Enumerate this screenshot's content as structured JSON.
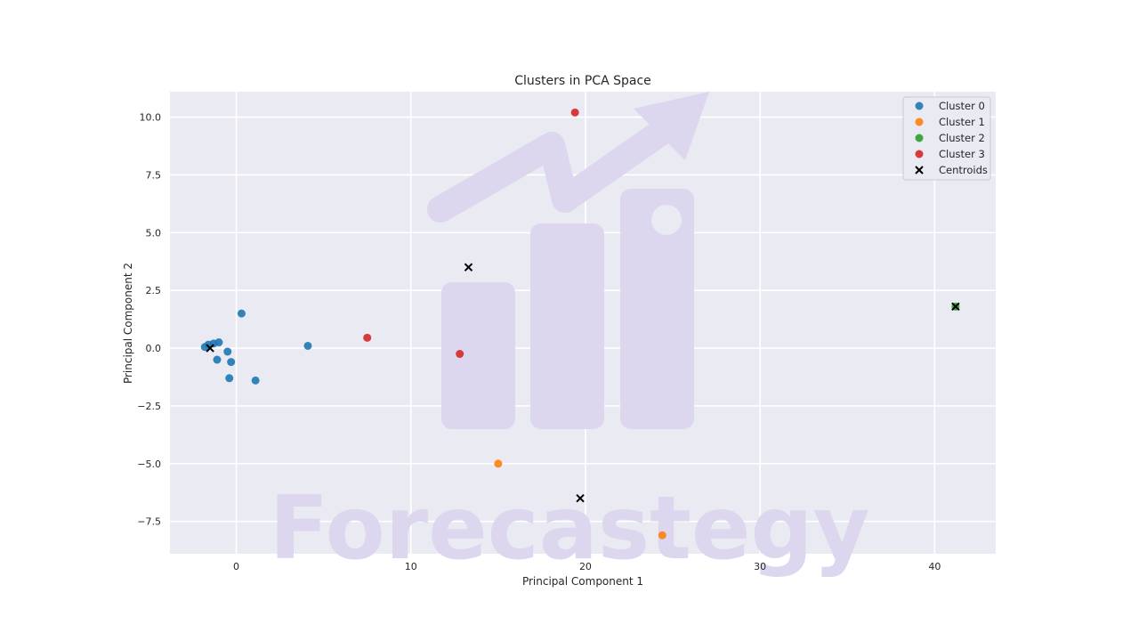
{
  "chart_data": {
    "type": "scatter",
    "title": "Clusters in PCA Space",
    "xlabel": "Principal Component 1",
    "ylabel": "Principal Component 2",
    "xlim": [
      -3.8,
      43.5
    ],
    "ylim": [
      -8.9,
      11.1
    ],
    "xticks": [
      0,
      10,
      20,
      30,
      40
    ],
    "xtick_labels": [
      "0",
      "10",
      "20",
      "30",
      "40"
    ],
    "yticks": [
      -7.5,
      -5.0,
      -2.5,
      0.0,
      2.5,
      5.0,
      7.5,
      10.0
    ],
    "ytick_labels": [
      "−7.5",
      "−5.0",
      "−2.5",
      "0.0",
      "2.5",
      "5.0",
      "7.5",
      "10.0"
    ],
    "grid": true,
    "legend_position": "top-right",
    "series": [
      {
        "name": "Cluster 0",
        "color": "#1f77b4",
        "marker": "circle",
        "points": [
          [
            -1.8,
            0.05
          ],
          [
            -1.6,
            0.15
          ],
          [
            -1.3,
            0.2
          ],
          [
            -1.0,
            0.25
          ],
          [
            -0.5,
            -0.15
          ],
          [
            -1.1,
            -0.5
          ],
          [
            -0.3,
            -0.6
          ],
          [
            -0.4,
            -1.3
          ],
          [
            0.3,
            1.5
          ],
          [
            1.1,
            -1.4
          ],
          [
            4.1,
            0.1
          ]
        ]
      },
      {
        "name": "Cluster 1",
        "color": "#ff7f0e",
        "marker": "circle",
        "points": [
          [
            15.0,
            -5.0
          ],
          [
            24.4,
            -8.1
          ]
        ]
      },
      {
        "name": "Cluster 2",
        "color": "#2ca02c",
        "marker": "circle",
        "points": [
          [
            41.2,
            1.8
          ]
        ]
      },
      {
        "name": "Cluster 3",
        "color": "#d62728",
        "marker": "circle",
        "points": [
          [
            7.5,
            0.45
          ],
          [
            12.8,
            -0.25
          ],
          [
            19.4,
            10.2
          ]
        ]
      },
      {
        "name": "Centroids",
        "color": "#000000",
        "marker": "x",
        "points": [
          [
            -1.5,
            0.0
          ],
          [
            13.3,
            3.5
          ],
          [
            19.7,
            -6.5
          ],
          [
            41.2,
            1.8
          ]
        ]
      }
    ]
  },
  "watermark": {
    "text": "Forecastegy",
    "color": "#d8d4ee"
  }
}
